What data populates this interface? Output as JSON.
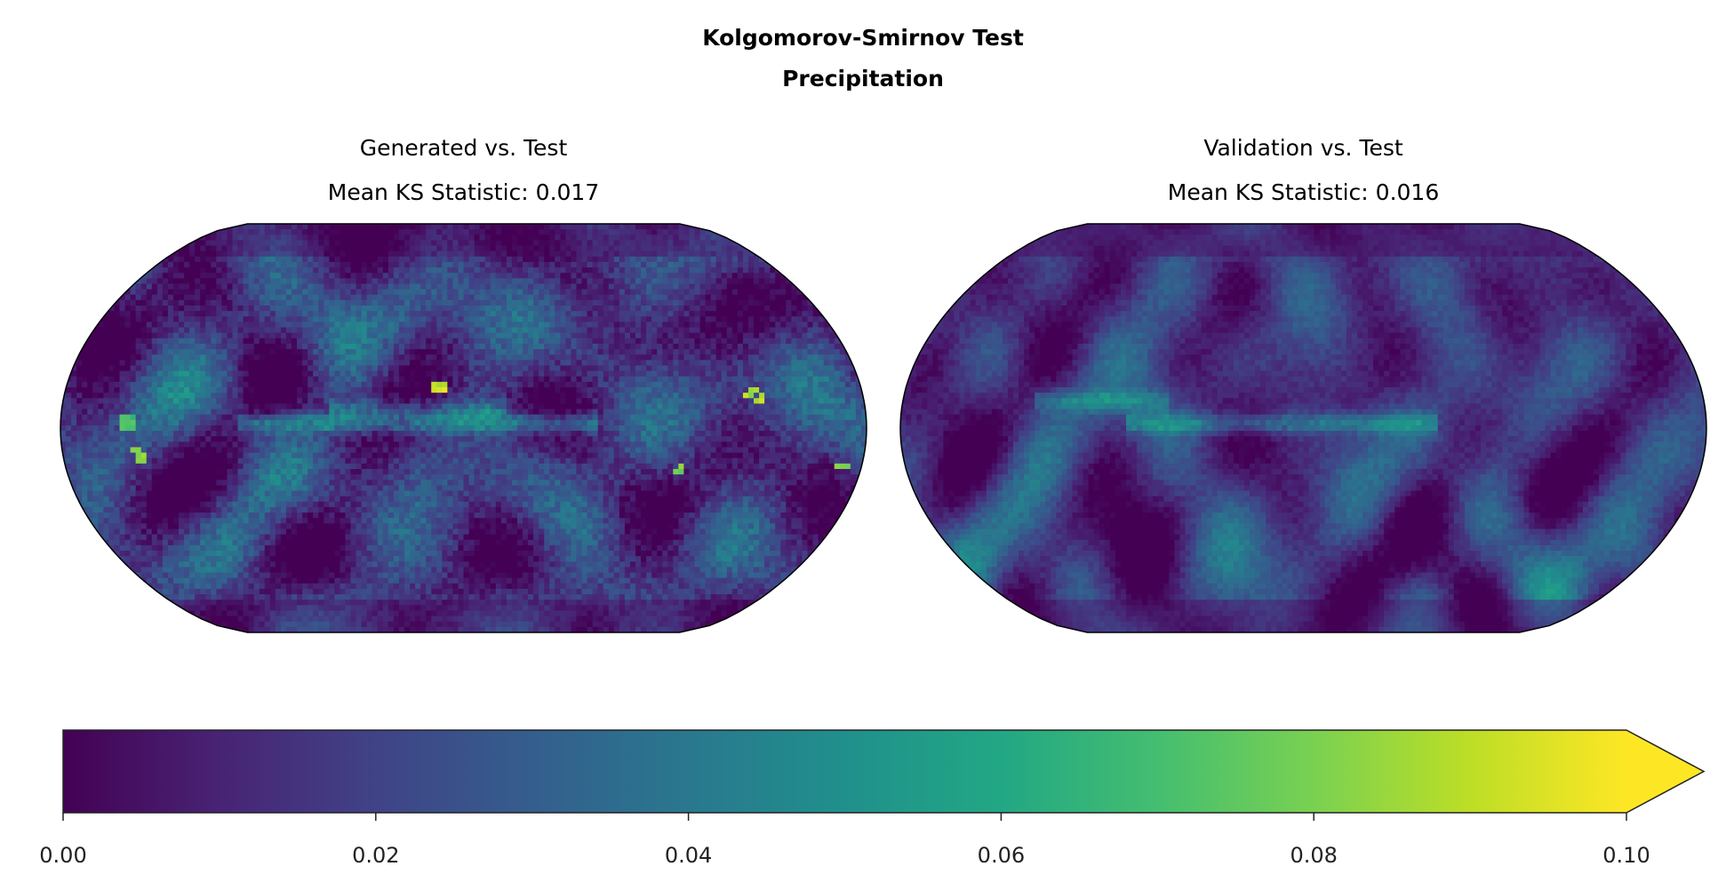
{
  "figure": {
    "title_line1": "Kolgomorov-Smirnov Test",
    "title_line2": "Precipitation"
  },
  "chart_data": {
    "type": "heatmap",
    "title": "Kolgomorov-Smirnov Test\nPrecipitation",
    "projection": "Robinson (global)",
    "colormap": "viridis",
    "panels": [
      {
        "id": "generated",
        "title": "Generated vs. Test",
        "subtitle": "Mean KS Statistic: 0.017",
        "mean_ks": 0.017,
        "note": "Gridded per-cell KS statistic field; values approximate. Brighter tropical band along the equator, scattered yellow hotspots.",
        "features": [
          {
            "kind": "band",
            "lat": 2,
            "lon_range": [
              -100,
              60
            ],
            "value": 0.055
          },
          {
            "kind": "band",
            "lat": 8,
            "lon_range": [
              -60,
              20
            ],
            "value": 0.045
          },
          {
            "kind": "hotspot",
            "lat": 18,
            "lon": -10,
            "value": 0.1
          },
          {
            "kind": "hotspot",
            "lat": 14,
            "lon": 130,
            "value": 0.095
          },
          {
            "kind": "hotspot",
            "lat": -12,
            "lon": -145,
            "value": 0.09
          },
          {
            "kind": "hotspot",
            "lat": -18,
            "lon": 170,
            "value": 0.09
          },
          {
            "kind": "hotspot",
            "lat": -18,
            "lon": 95,
            "value": 0.085
          },
          {
            "kind": "hotspot",
            "lat": 2,
            "lon": -150,
            "value": 0.075
          }
        ]
      },
      {
        "id": "validation",
        "title": "Validation vs. Test",
        "subtitle": "Mean KS Statistic: 0.016",
        "mean_ks": 0.016,
        "note": "Smoother field than the generated panel; equatorial band moderately bright, no yellow hotspots.",
        "features": [
          {
            "kind": "band",
            "lat": 2,
            "lon_range": [
              -80,
              60
            ],
            "value": 0.05
          },
          {
            "kind": "band",
            "lat": 12,
            "lon_range": [
              -120,
              -60
            ],
            "value": 0.045
          }
        ]
      }
    ],
    "colorbar": {
      "orientation": "horizontal",
      "location": "bottom",
      "vmin": 0.0,
      "vmax": 0.1,
      "extend": "max",
      "ticks": [
        0.0,
        0.02,
        0.04,
        0.06,
        0.08,
        0.1
      ],
      "tick_labels": [
        "0.00",
        "0.02",
        "0.04",
        "0.06",
        "0.08",
        "0.10"
      ]
    }
  }
}
